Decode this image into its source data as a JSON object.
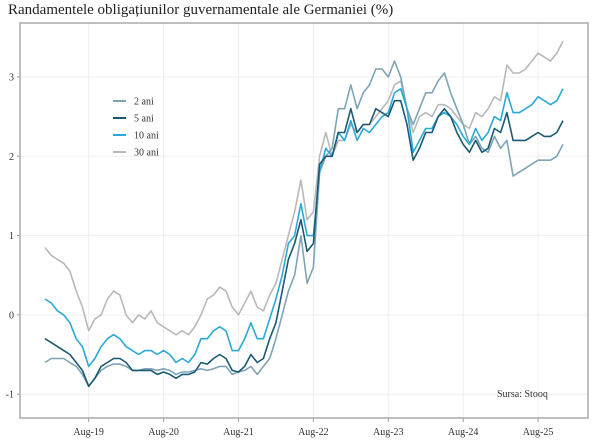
{
  "chart_data": {
    "type": "line",
    "title": "Randamentele obligațiunilor guvernamentale ale Germaniei (%)",
    "source": "Sursa: Stooq",
    "xlabel": "",
    "ylabel": "",
    "x_start": "2019-01",
    "x_frequency": "monthly",
    "xlim": [
      "2018-09",
      "2026-04"
    ],
    "ylim": [
      -1.3,
      3.68
    ],
    "x_ticks": [
      {
        "date": "2019-08",
        "label": "Aug-19"
      },
      {
        "date": "2020-08",
        "label": "Aug-20"
      },
      {
        "date": "2021-08",
        "label": "Aug-21"
      },
      {
        "date": "2022-08",
        "label": "Aug-22"
      },
      {
        "date": "2023-08",
        "label": "Aug-23"
      },
      {
        "date": "2024-08",
        "label": "Aug-24"
      },
      {
        "date": "2025-08",
        "label": "Aug-25"
      }
    ],
    "y_ticks": [
      -1,
      0,
      1,
      2,
      3
    ],
    "grid": true,
    "legend_position": "top-left",
    "series": [
      {
        "name": "30 ani",
        "color": "#b9b9bc",
        "values": [
          0.85,
          0.75,
          0.7,
          0.65,
          0.55,
          0.3,
          0.1,
          -0.2,
          -0.05,
          0,
          0.2,
          0.3,
          0.25,
          0.0,
          -0.1,
          0.0,
          -0.05,
          0.05,
          -0.1,
          -0.15,
          -0.2,
          -0.25,
          -0.2,
          -0.25,
          -0.15,
          0.0,
          0.2,
          0.25,
          0.35,
          0.3,
          0.1,
          0.0,
          0.15,
          0.3,
          0.1,
          0.05,
          0.25,
          0.4,
          0.7,
          1.0,
          1.3,
          1.7,
          1.2,
          1.3,
          2.0,
          2.3,
          2.0,
          2.2,
          2.2,
          2.4,
          2.3,
          2.4,
          2.4,
          2.5,
          2.6,
          2.7,
          2.9,
          2.95,
          2.6,
          2.3,
          2.5,
          2.55,
          2.5,
          2.65,
          2.65,
          2.6,
          2.5,
          2.4,
          2.35,
          2.55,
          2.5,
          2.6,
          2.75,
          2.7,
          3.15,
          3.05,
          3.05,
          3.1,
          3.2,
          3.3,
          3.25,
          3.2,
          3.3,
          3.45
        ]
      },
      {
        "name": "2 ani",
        "color": "#7fa4b6",
        "values": [
          -0.6,
          -0.55,
          -0.55,
          -0.55,
          -0.6,
          -0.65,
          -0.75,
          -0.9,
          -0.8,
          -0.7,
          -0.65,
          -0.62,
          -0.62,
          -0.65,
          -0.7,
          -0.7,
          -0.68,
          -0.68,
          -0.7,
          -0.68,
          -0.7,
          -0.75,
          -0.72,
          -0.72,
          -0.7,
          -0.68,
          -0.7,
          -0.68,
          -0.65,
          -0.65,
          -0.75,
          -0.72,
          -0.7,
          -0.65,
          -0.75,
          -0.65,
          -0.55,
          -0.3,
          0.0,
          0.3,
          0.5,
          1.0,
          0.4,
          0.6,
          1.8,
          2.0,
          2.1,
          2.6,
          2.6,
          2.9,
          2.6,
          2.8,
          2.9,
          3.1,
          3.1,
          3.0,
          3.2,
          3.0,
          2.6,
          2.4,
          2.6,
          2.8,
          2.8,
          2.95,
          3.05,
          2.8,
          2.6,
          2.4,
          2.15,
          2.25,
          2.1,
          2.05,
          2.25,
          2.1,
          2.2,
          1.75,
          1.8,
          1.85,
          1.9,
          1.95,
          1.95,
          1.95,
          2.0,
          2.15
        ]
      },
      {
        "name": "10 ani",
        "color": "#2aa9d8",
        "values": [
          0.2,
          0.15,
          0.05,
          0.0,
          -0.1,
          -0.3,
          -0.4,
          -0.65,
          -0.55,
          -0.4,
          -0.3,
          -0.25,
          -0.3,
          -0.4,
          -0.45,
          -0.5,
          -0.45,
          -0.45,
          -0.5,
          -0.45,
          -0.5,
          -0.6,
          -0.55,
          -0.6,
          -0.5,
          -0.3,
          -0.3,
          -0.2,
          -0.15,
          -0.2,
          -0.45,
          -0.45,
          -0.3,
          -0.1,
          -0.3,
          -0.3,
          -0.05,
          0.2,
          0.5,
          0.9,
          1.0,
          1.4,
          1.0,
          1.0,
          1.8,
          2.1,
          2.0,
          2.3,
          2.2,
          2.45,
          2.2,
          2.35,
          2.3,
          2.4,
          2.5,
          2.55,
          2.8,
          2.85,
          2.6,
          2.05,
          2.2,
          2.35,
          2.35,
          2.5,
          2.55,
          2.5,
          2.4,
          2.25,
          2.15,
          2.35,
          2.2,
          2.3,
          2.5,
          2.45,
          2.8,
          2.55,
          2.55,
          2.6,
          2.65,
          2.75,
          2.7,
          2.65,
          2.7,
          2.85
        ]
      },
      {
        "name": "5 ani",
        "color": "#1b5a72",
        "values": [
          -0.3,
          -0.35,
          -0.4,
          -0.45,
          -0.5,
          -0.6,
          -0.7,
          -0.9,
          -0.8,
          -0.65,
          -0.6,
          -0.55,
          -0.55,
          -0.6,
          -0.7,
          -0.7,
          -0.7,
          -0.7,
          -0.75,
          -0.72,
          -0.75,
          -0.8,
          -0.75,
          -0.75,
          -0.72,
          -0.6,
          -0.62,
          -0.55,
          -0.5,
          -0.55,
          -0.7,
          -0.72,
          -0.65,
          -0.5,
          -0.6,
          -0.55,
          -0.3,
          -0.1,
          0.3,
          0.7,
          0.9,
          1.2,
          0.8,
          0.9,
          1.9,
          2.0,
          2.0,
          2.3,
          2.3,
          2.6,
          2.3,
          2.4,
          2.4,
          2.6,
          2.55,
          2.5,
          2.7,
          2.7,
          2.4,
          1.95,
          2.1,
          2.3,
          2.3,
          2.5,
          2.6,
          2.5,
          2.3,
          2.15,
          2.05,
          2.2,
          2.05,
          2.1,
          2.35,
          2.3,
          2.55,
          2.2,
          2.2,
          2.2,
          2.25,
          2.3,
          2.25,
          2.25,
          2.3,
          2.45
        ]
      }
    ],
    "legend_order": [
      "2 ani",
      "5 ani",
      "10 ani",
      "30 ani"
    ]
  }
}
